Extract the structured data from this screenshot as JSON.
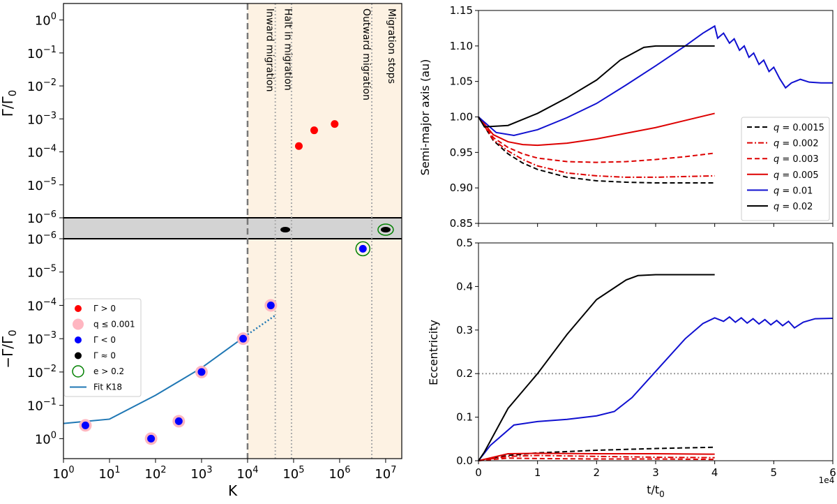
{
  "chart_data": [
    {
      "type": "scatter",
      "xscale": "log",
      "xlabel": "K",
      "xlim_exp": [
        0,
        7.35
      ],
      "xticks": [
        {
          "exp": 0,
          "label": "10",
          "sup": "0"
        },
        {
          "exp": 1,
          "label": "10",
          "sup": "1"
        },
        {
          "exp": 2,
          "label": "10",
          "sup": "2"
        },
        {
          "exp": 3,
          "label": "10",
          "sup": "3"
        },
        {
          "exp": 4,
          "label": "10",
          "sup": "4"
        },
        {
          "exp": 5,
          "label": "10",
          "sup": "5"
        },
        {
          "exp": 6,
          "label": "10",
          "sup": "6"
        },
        {
          "exp": 7,
          "label": "10",
          "sup": "7"
        }
      ],
      "upper_panel": {
        "ylabel": "Γ/Γ",
        "ylabel_sub": "0",
        "ylim_exp": [
          -6,
          0.5
        ],
        "yticks": [
          {
            "exp": 0,
            "label": "10",
            "sup": "0"
          },
          {
            "exp": -1,
            "label": "10",
            "sup": "−1"
          },
          {
            "exp": -2,
            "label": "10",
            "sup": "−2"
          },
          {
            "exp": -3,
            "label": "10",
            "sup": "−3"
          },
          {
            "exp": -4,
            "label": "10",
            "sup": "−4"
          },
          {
            "exp": -5,
            "label": "10",
            "sup": "−5"
          },
          {
            "exp": -6,
            "label": "10",
            "sup": "−6"
          }
        ],
        "positive_points": [
          {
            "K": 130000,
            "value": 0.00015
          },
          {
            "K": 280000,
            "value": 0.00045
          },
          {
            "K": 780000,
            "value": 0.0007
          }
        ]
      },
      "middle_band": {
        "zero_points": [
          {
            "K": 66000,
            "eccentric": false
          },
          {
            "K": 10000000,
            "eccentric": true
          }
        ]
      },
      "lower_panel": {
        "ylabel": "−Γ/Γ",
        "ylabel_sub": "0",
        "ylim_exp": [
          -6,
          0.6
        ],
        "yticks": [
          {
            "exp": -6,
            "label": "10",
            "sup": "−6"
          },
          {
            "exp": -5,
            "label": "10",
            "sup": "−5"
          },
          {
            "exp": -4,
            "label": "10",
            "sup": "−4"
          },
          {
            "exp": -3,
            "label": "10",
            "sup": "−3"
          },
          {
            "exp": -2,
            "label": "10",
            "sup": "−2"
          },
          {
            "exp": -1,
            "label": "10",
            "sup": "−1"
          },
          {
            "exp": 0,
            "label": "10",
            "sup": "0"
          }
        ],
        "negative_points": [
          {
            "K": 3,
            "value": 0.4,
            "low_q": true,
            "eccentric": false
          },
          {
            "K": 80,
            "value": 1.0,
            "low_q": true,
            "eccentric": false
          },
          {
            "K": 320,
            "value": 0.3,
            "low_q": true,
            "eccentric": false
          },
          {
            "K": 1000,
            "value": 0.01,
            "low_q": true,
            "eccentric": false
          },
          {
            "K": 8000,
            "value": 0.001,
            "low_q": true,
            "eccentric": false
          },
          {
            "K": 32000,
            "value": 0.0001,
            "low_q": true,
            "eccentric": false
          },
          {
            "K": 3200000,
            "value": 2e-06,
            "low_q": false,
            "eccentric": true
          }
        ],
        "fit": {
          "name": "Fit K18",
          "solid": [
            [
              1,
              0.35
            ],
            [
              10,
              0.26
            ],
            [
              100,
              0.05
            ],
            [
              1000,
              0.0075
            ],
            [
              10000,
              0.00075
            ]
          ],
          "dotted": [
            [
              10000,
              0.00075
            ],
            [
              40000,
              0.0002
            ]
          ]
        }
      },
      "regions": [
        {
          "label": "Inward migration",
          "K_from": 10000,
          "K_to": 40000
        },
        {
          "label": "Halt in migration",
          "K_from": 40000,
          "K_to": 90000
        },
        {
          "label": "Outward migration",
          "K_from": 90000,
          "K_to": 5000000
        },
        {
          "label": "Migration stops",
          "K_from": 5000000,
          "K_to": 22000000
        }
      ],
      "dashed_K": 10000,
      "dotted_K": [
        40000,
        90000,
        5000000
      ],
      "legend": [
        {
          "key": "pos",
          "label": "Γ > 0"
        },
        {
          "key": "lowq",
          "label": "q ≤ 0.001"
        },
        {
          "key": "neg",
          "label": "Γ < 0"
        },
        {
          "key": "zero",
          "label": "Γ ≈ 0"
        },
        {
          "key": "ecc",
          "label": "e > 0.2"
        },
        {
          "key": "fit",
          "label": "Fit K18"
        }
      ],
      "colors": {
        "pos": "#ff0000",
        "neg": "#0000ff",
        "zero": "#000000",
        "lowq": "#ffb6c1",
        "ecc": "#008000",
        "fit": "#1f77b4",
        "region": "#fdf2e3",
        "band": "#d3d3d3"
      }
    },
    {
      "type": "line",
      "ylabel": "Semi-major axis (au)",
      "ylim": [
        0.85,
        1.15
      ],
      "yticks": [
        "0.85",
        "0.90",
        "0.95",
        "1.00",
        "1.05",
        "1.10",
        "1.15"
      ],
      "xlim": [
        0,
        6
      ],
      "series": [
        {
          "name": "q = 0.0015",
          "q": "0.0015",
          "color": "#000000",
          "dash": "dashed",
          "x": [
            0,
            0.25,
            0.5,
            0.75,
            1,
            1.5,
            2,
            2.5,
            3,
            3.5,
            4
          ],
          "y": [
            1.0,
            0.967,
            0.948,
            0.935,
            0.926,
            0.915,
            0.91,
            0.908,
            0.907,
            0.907,
            0.907
          ]
        },
        {
          "name": "q = 0.002",
          "q": "0.002",
          "color": "#dd0000",
          "dash": "dashdot",
          "x": [
            0,
            0.25,
            0.5,
            0.75,
            1,
            1.5,
            2,
            2.5,
            3,
            3.5,
            4
          ],
          "y": [
            1.0,
            0.968,
            0.952,
            0.94,
            0.931,
            0.921,
            0.917,
            0.915,
            0.915,
            0.916,
            0.917
          ]
        },
        {
          "name": "q = 0.003",
          "q": "0.003",
          "color": "#dd0000",
          "dash": "dashed",
          "x": [
            0,
            0.25,
            0.5,
            0.75,
            1,
            1.5,
            2,
            2.5,
            3,
            3.5,
            4
          ],
          "y": [
            1.0,
            0.971,
            0.957,
            0.948,
            0.942,
            0.937,
            0.936,
            0.937,
            0.94,
            0.944,
            0.949
          ]
        },
        {
          "name": "q = 0.005",
          "q": "0.005",
          "color": "#dd0000",
          "dash": "solid",
          "x": [
            0,
            0.25,
            0.5,
            0.75,
            1,
            1.5,
            2,
            2.5,
            3,
            3.5,
            4
          ],
          "y": [
            1.0,
            0.975,
            0.965,
            0.961,
            0.96,
            0.963,
            0.969,
            0.977,
            0.985,
            0.995,
            1.005
          ]
        },
        {
          "name": "q = 0.01",
          "q": "0.01",
          "color": "#1010d0",
          "dash": "solid",
          "x": [
            0,
            0.3,
            0.6,
            1.0,
            1.5,
            2.0,
            2.5,
            3.0,
            3.5,
            3.8,
            4.0,
            4.05,
            4.15,
            4.25,
            4.33,
            4.42,
            4.5,
            4.58,
            4.66,
            4.75,
            4.83,
            4.92,
            5.0,
            5.1,
            5.2,
            5.3,
            5.45,
            5.6,
            5.8,
            6.0
          ],
          "y": [
            1.0,
            0.978,
            0.974,
            0.982,
            0.999,
            1.019,
            1.045,
            1.072,
            1.1,
            1.118,
            1.128,
            1.111,
            1.118,
            1.104,
            1.11,
            1.094,
            1.1,
            1.084,
            1.09,
            1.074,
            1.08,
            1.064,
            1.07,
            1.054,
            1.041,
            1.048,
            1.053,
            1.049,
            1.048,
            1.048
          ]
        },
        {
          "name": "q = 0.02",
          "q": "0.02",
          "color": "#000000",
          "dash": "solid",
          "x": [
            0,
            0.1,
            0.5,
            1.0,
            1.5,
            2.0,
            2.4,
            2.8,
            3.0,
            3.5,
            4.0
          ],
          "y": [
            1.0,
            0.986,
            0.988,
            1.005,
            1.027,
            1.052,
            1.08,
            1.098,
            1.1,
            1.1,
            1.1
          ]
        }
      ]
    },
    {
      "type": "line",
      "xlabel": "t/t",
      "xlabel_sub": "0",
      "offset_text": "1e4",
      "ylabel": "Eccentricity",
      "ylim": [
        0,
        0.5
      ],
      "yticks": [
        "0.0",
        "0.1",
        "0.2",
        "0.3",
        "0.4",
        "0.5"
      ],
      "xlim": [
        0,
        6
      ],
      "xticks": [
        "0",
        "1",
        "2",
        "3",
        "4",
        "5",
        "6"
      ],
      "reference_y": 0.2,
      "series": [
        {
          "q": "0.0015",
          "color": "#000000",
          "dash": "dashed",
          "x": [
            0,
            0.5,
            1,
            2,
            3,
            4
          ],
          "y": [
            0.0,
            0.012,
            0.018,
            0.024,
            0.028,
            0.031
          ]
        },
        {
          "q": "0.002",
          "color": "#dd0000",
          "dash": "dashdot",
          "x": [
            0,
            0.5,
            1,
            2,
            3,
            4
          ],
          "y": [
            0.0,
            0.01,
            0.012,
            0.01,
            0.008,
            0.007
          ]
        },
        {
          "q": "0.003",
          "color": "#dd0000",
          "dash": "dashed",
          "x": [
            0,
            0.5,
            1,
            2,
            3,
            4
          ],
          "y": [
            0.0,
            0.006,
            0.005,
            0.004,
            0.004,
            0.003
          ]
        },
        {
          "q": "0.005",
          "color": "#dd0000",
          "dash": "solid",
          "x": [
            0,
            0.5,
            1,
            2,
            3,
            4
          ],
          "y": [
            0.0,
            0.016,
            0.017,
            0.016,
            0.016,
            0.015
          ]
        },
        {
          "q": "0.01",
          "color": "#1010d0",
          "dash": "solid",
          "x": [
            0,
            0.2,
            0.6,
            1.0,
            1.5,
            2.0,
            2.3,
            2.6,
            3.0,
            3.5,
            3.8,
            4.0,
            4.15,
            4.25,
            4.35,
            4.45,
            4.55,
            4.65,
            4.75,
            4.85,
            4.95,
            5.05,
            5.15,
            5.25,
            5.35,
            5.5,
            5.7,
            6.0
          ],
          "y": [
            0.0,
            0.035,
            0.082,
            0.09,
            0.095,
            0.103,
            0.113,
            0.145,
            0.205,
            0.28,
            0.315,
            0.328,
            0.32,
            0.33,
            0.318,
            0.328,
            0.316,
            0.326,
            0.314,
            0.324,
            0.312,
            0.322,
            0.31,
            0.32,
            0.305,
            0.318,
            0.326,
            0.327
          ]
        },
        {
          "q": "0.02",
          "color": "#000000",
          "dash": "solid",
          "x": [
            0,
            0.1,
            0.5,
            1.0,
            1.5,
            2.0,
            2.5,
            2.7,
            3.0,
            3.5,
            4.0
          ],
          "y": [
            0.0,
            0.02,
            0.12,
            0.2,
            0.29,
            0.37,
            0.415,
            0.425,
            0.427,
            0.427,
            0.427
          ]
        }
      ]
    }
  ]
}
